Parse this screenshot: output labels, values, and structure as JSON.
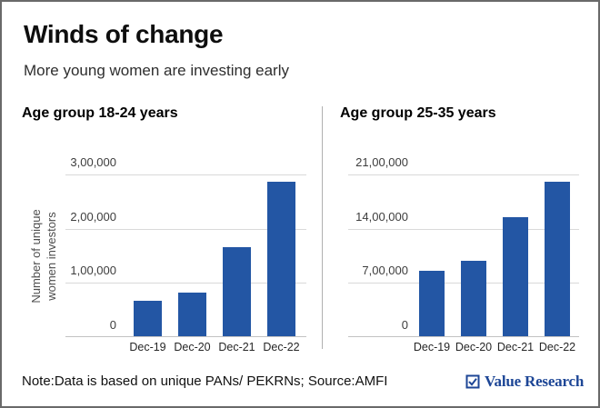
{
  "header": {
    "title": "Winds of change",
    "subtitle": "More young women are investing early"
  },
  "chart_data": [
    {
      "type": "bar",
      "title": "Age group 18-24 years",
      "categories": [
        "Dec-19",
        "Dec-20",
        "Dec-21",
        "Dec-22"
      ],
      "values": [
        65000,
        80000,
        165000,
        285000
      ],
      "xlabel": "",
      "ylabel": "Number of unique women investors",
      "ylabel_lines": [
        "Number of unique",
        "women investors"
      ],
      "ylim": [
        0,
        300000
      ],
      "ytick_labels": [
        "3,00,000",
        "2,00,000",
        "1,00,000",
        "0"
      ],
      "grid": "horizontal",
      "legend": "none",
      "bar_color": "#2356a4"
    },
    {
      "type": "bar",
      "title": "Age group 25-35 years",
      "categories": [
        "Dec-19",
        "Dec-20",
        "Dec-21",
        "Dec-22"
      ],
      "values": [
        850000,
        975000,
        1540000,
        1990000
      ],
      "xlabel": "",
      "ylabel": "",
      "ylim": [
        0,
        2100000
      ],
      "ytick_labels": [
        "21,00,000",
        "14,00,000",
        "7,00,000",
        "0"
      ],
      "grid": "horizontal",
      "legend": "none",
      "bar_color": "#2356a4"
    }
  ],
  "footer": {
    "note": "Note:Data is based on unique PANs/ PEKRNs; Source:AMFI",
    "brand": "Value Research",
    "brand_icon": "checkbox-check-icon",
    "brand_color": "#1d4696"
  }
}
